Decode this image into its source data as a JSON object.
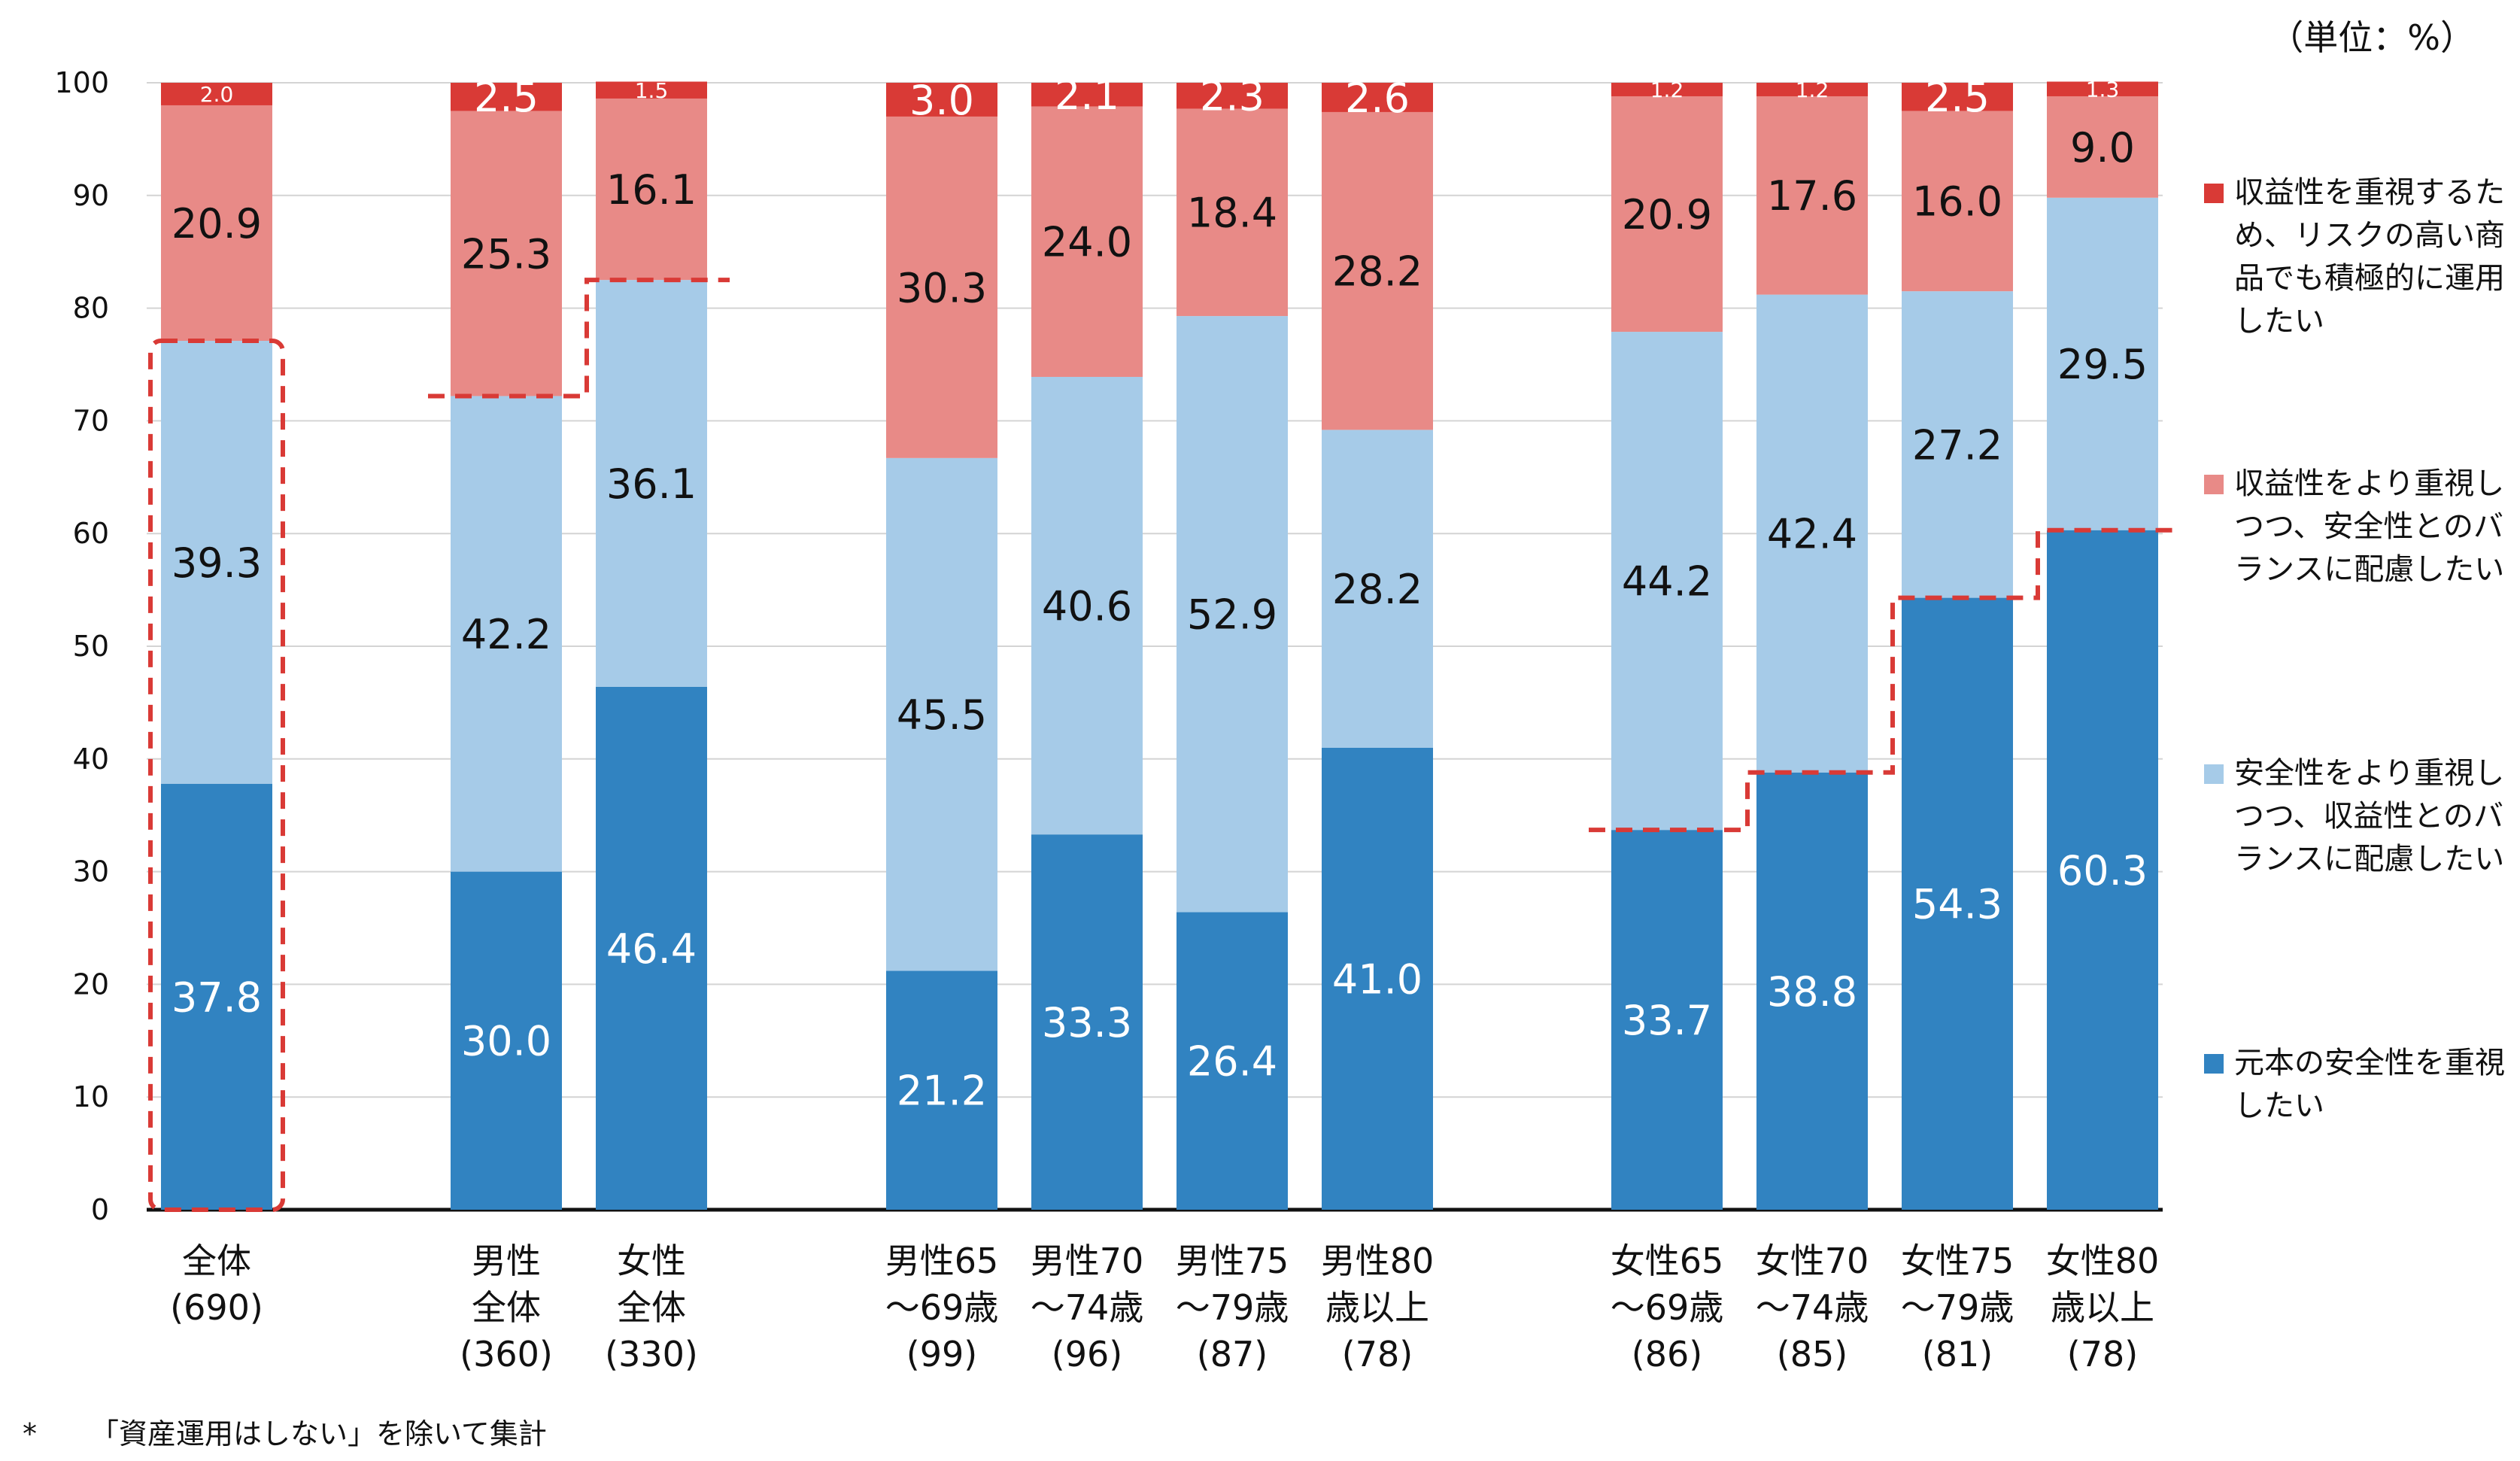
{
  "unit_label": "（単位：%）",
  "footnote": {
    "marker": "*",
    "text": "「資産運用はしない」を除いて集計"
  },
  "chart_data": {
    "type": "bar",
    "stacked": true,
    "ylim": [
      0,
      100
    ],
    "yticks": [
      0,
      10,
      20,
      30,
      40,
      50,
      60,
      70,
      80,
      90,
      100
    ],
    "grid": true,
    "categories": [
      {
        "lines": [
          "全体",
          "(690)"
        ]
      },
      {
        "lines": [
          "男性",
          "全体",
          "(360)"
        ]
      },
      {
        "lines": [
          "女性",
          "全体",
          "(330)"
        ]
      },
      {
        "lines": [
          "男性65",
          "～69歳",
          "(99)"
        ]
      },
      {
        "lines": [
          "男性70",
          "～74歳",
          "(96)"
        ]
      },
      {
        "lines": [
          "男性75",
          "～79歳",
          "(87)"
        ]
      },
      {
        "lines": [
          "男性80",
          "歳以上",
          "(78)"
        ]
      },
      {
        "lines": [
          "女性65",
          "～69歳",
          "(86)"
        ]
      },
      {
        "lines": [
          "女性70",
          "～74歳",
          "(85)"
        ]
      },
      {
        "lines": [
          "女性75",
          "～79歳",
          "(81)"
        ]
      },
      {
        "lines": [
          "女性80",
          "歳以上",
          "(78)"
        ]
      }
    ],
    "series": [
      {
        "name": "元本の安全性を重視したい",
        "color": "#3183C1",
        "label_color": "#ffffff",
        "values": [
          37.8,
          30.0,
          46.4,
          21.2,
          33.3,
          26.4,
          41.0,
          33.7,
          38.8,
          54.3,
          60.3
        ]
      },
      {
        "name": "安全性をより重視しつつ、収益性とのバランスに配慮したい",
        "color": "#A6CBE8",
        "label_color": "#111111",
        "values": [
          39.3,
          42.2,
          36.1,
          45.5,
          40.6,
          52.9,
          28.2,
          44.2,
          42.4,
          27.2,
          29.5
        ]
      },
      {
        "name": "収益性をより重視しつつ、安全性とのバランスに配慮したい",
        "color": "#E88A87",
        "label_color": "#111111",
        "values": [
          20.9,
          25.3,
          16.1,
          30.3,
          24.0,
          18.4,
          28.2,
          20.9,
          17.6,
          16.0,
          9.0
        ]
      },
      {
        "name": "収益性を重視するため、リスクの高い商品でも積極的に運用したい",
        "color": "#D93A36",
        "label_color": "#ffffff",
        "values": [
          2.0,
          2.5,
          1.5,
          3.0,
          2.1,
          2.3,
          2.6,
          1.2,
          1.2,
          2.5,
          1.3
        ]
      }
    ],
    "highlights": [
      {
        "type": "box",
        "category": 0,
        "from": 0,
        "to": 77.1
      },
      {
        "type": "step",
        "categories": [
          1,
          2
        ],
        "levels": [
          72.2,
          82.5
        ]
      },
      {
        "type": "step",
        "categories": [
          7,
          8,
          9,
          10
        ],
        "levels": [
          33.7,
          38.8,
          54.3,
          60.3
        ]
      }
    ]
  },
  "legend": [
    {
      "series": 3,
      "label": "収益性を重視するため、リスクの高い商品でも積極的に運用したい"
    },
    {
      "series": 2,
      "label": "収益性をより重視しつつ、安全性とのバランスに配慮したい"
    },
    {
      "series": 1,
      "label": "安全性をより重視しつつ、収益性とのバランスに配慮したい"
    },
    {
      "series": 0,
      "label": "元本の安全性を重視したい"
    }
  ]
}
